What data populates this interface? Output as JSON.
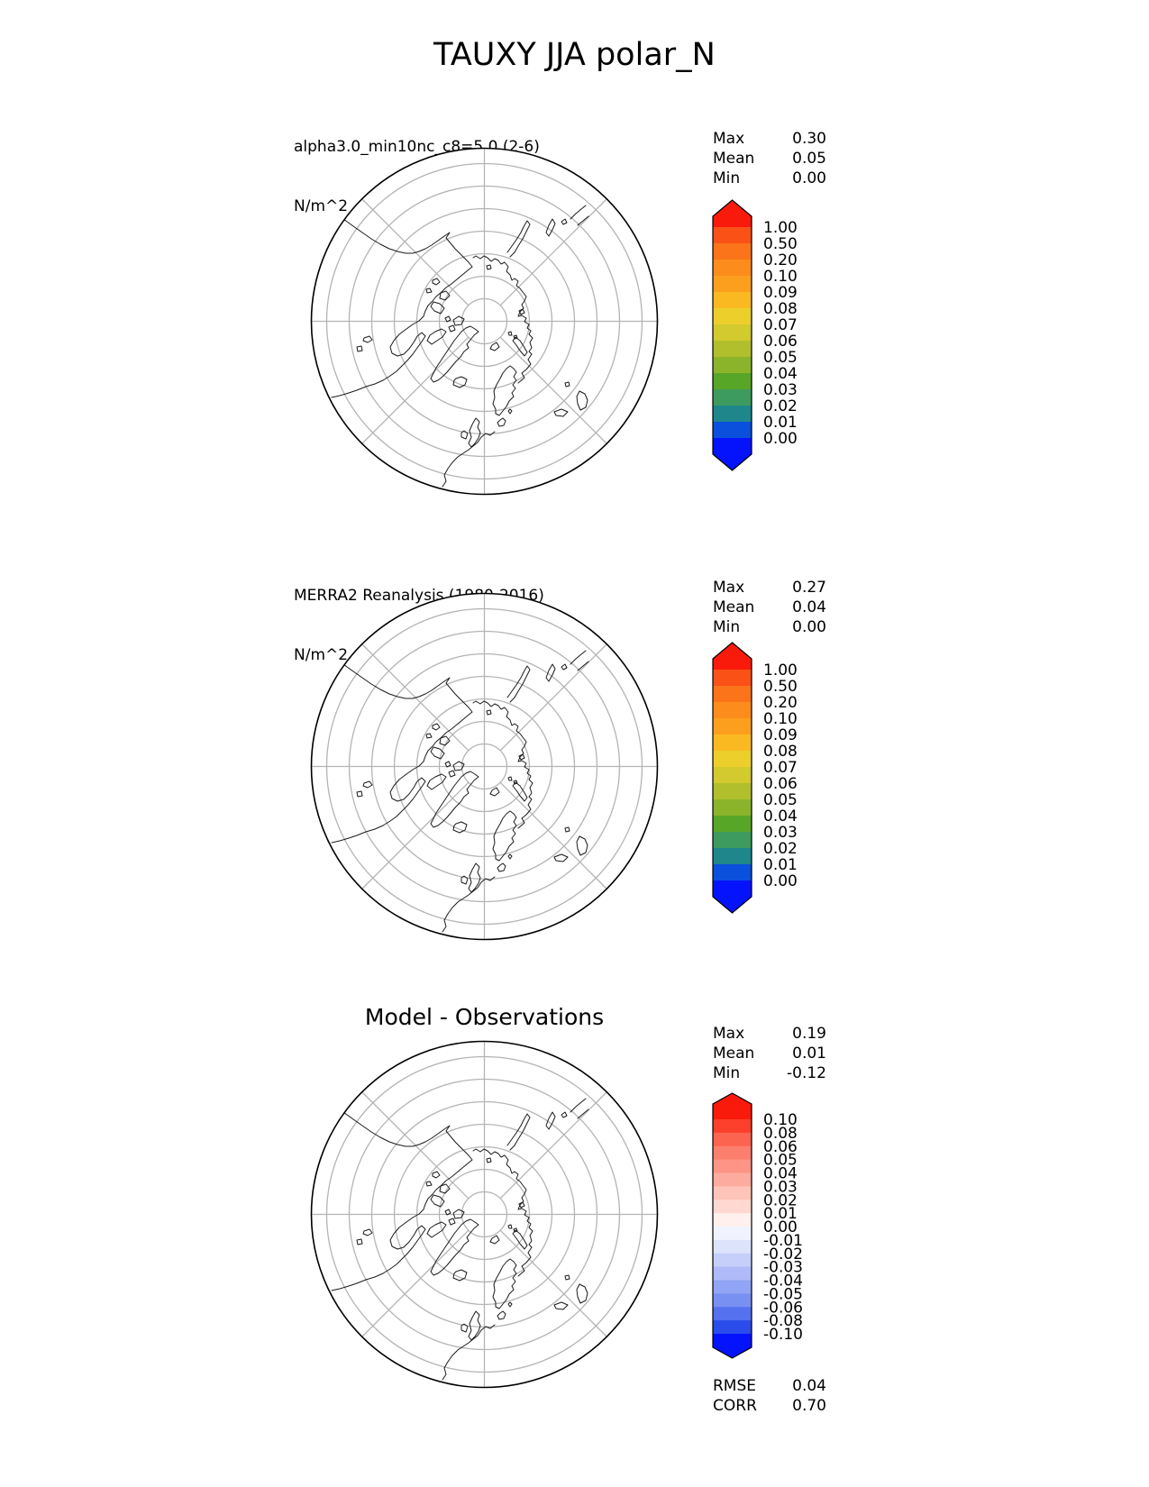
{
  "figure_title": "TAUXY JJA polar_N",
  "panels": [
    {
      "header_line1": "alpha3.0_min10nc_c8=5.0 (2-6)",
      "header_line2": "N/m^2",
      "stats_rows": [
        {
          "label": "Max",
          "value": "0.30"
        },
        {
          "label": "Mean",
          "value": "0.05"
        },
        {
          "label": "Min",
          "value": "0.00"
        }
      ]
    },
    {
      "header_line1": "MERRA2 Reanalysis (1980-2016)",
      "header_line2": "N/m^2",
      "stats_rows": [
        {
          "label": "Max",
          "value": "0.27"
        },
        {
          "label": "Mean",
          "value": "0.04"
        },
        {
          "label": "Min",
          "value": "0.00"
        }
      ]
    },
    {
      "header_line1": "Model - Observations",
      "header_line2": "",
      "stats_rows": [
        {
          "label": "Max",
          "value": "0.19"
        },
        {
          "label": "Mean",
          "value": "0.01"
        },
        {
          "label": "Min",
          "value": "-0.12"
        }
      ]
    }
  ],
  "footer_rows": [
    {
      "label": "RMSE",
      "value": "0.04"
    },
    {
      "label": "CORR",
      "value": "0.70"
    }
  ],
  "colorbars": [
    {
      "labels": [
        "1.00",
        "0.50",
        "0.20",
        "0.10",
        "0.09",
        "0.08",
        "0.07",
        "0.06",
        "0.05",
        "0.04",
        "0.03",
        "0.02",
        "0.01",
        "0.00"
      ],
      "segment_colors": [
        "#fa5117",
        "#fb7419",
        "#fc8c1b",
        "#fc9f1e",
        "#fbb921",
        "#eccf2b",
        "#d2ca2e",
        "#b1bf2d",
        "#8cb42b",
        "#58a627",
        "#3e9b5f",
        "#1e878c",
        "#0b50dd"
      ],
      "over_color": "#f91a0c",
      "under_color": "#0413fc"
    },
    {
      "labels": [
        "1.00",
        "0.50",
        "0.20",
        "0.10",
        "0.09",
        "0.08",
        "0.07",
        "0.06",
        "0.05",
        "0.04",
        "0.03",
        "0.02",
        "0.01",
        "0.00"
      ],
      "segment_colors": [
        "#fa5117",
        "#fb7419",
        "#fc8c1b",
        "#fc9f1e",
        "#fbb921",
        "#eccf2b",
        "#d2ca2e",
        "#b1bf2d",
        "#8cb42b",
        "#58a627",
        "#3e9b5f",
        "#1e878c",
        "#0b50dd"
      ],
      "over_color": "#f91a0c",
      "under_color": "#0413fc"
    },
    {
      "labels": [
        "0.10",
        "0.08",
        "0.06",
        "0.05",
        "0.04",
        "0.03",
        "0.02",
        "0.01",
        "0.00",
        "-0.01",
        "-0.02",
        "-0.03",
        "-0.04",
        "-0.05",
        "-0.06",
        "-0.08",
        "-0.10"
      ],
      "segment_colors": [
        "#fb3f2a",
        "#fc6450",
        "#fc7f6d",
        "#fd9485",
        "#fdab9e",
        "#fec3b9",
        "#fed8d1",
        "#fff0ed",
        "#f0f3fd",
        "#dde3fb",
        "#c5cffa",
        "#aebbf8",
        "#92a4f5",
        "#7990f3",
        "#5571ef",
        "#2a4cea"
      ],
      "over_color": "#f91a0c",
      "under_color": "#0413fc"
    }
  ],
  "map_style": {
    "graticule_color": "#b4b4b4",
    "coastline_color": "#1a1a1a",
    "outline_color": "#000000",
    "background": "#ffffff"
  },
  "chart_data": {
    "type": "map",
    "title": "TAUXY JJA polar_N",
    "variable": "TAUXY",
    "season": "JJA",
    "region": "polar_N",
    "projection": "north polar stereographic",
    "panels": [
      {
        "title": "alpha3.0_min10nc_c8=5.0 (2-6)",
        "units": "N/m^2",
        "max": 0.3,
        "mean": 0.05,
        "min": 0.0,
        "colorbar_levels": [
          0.0,
          0.01,
          0.02,
          0.03,
          0.04,
          0.05,
          0.06,
          0.07,
          0.08,
          0.09,
          0.1,
          0.2,
          0.5,
          1.0
        ],
        "colorbar_extend": "both"
      },
      {
        "title": "MERRA2 Reanalysis (1980-2016)",
        "units": "N/m^2",
        "max": 0.27,
        "mean": 0.04,
        "min": 0.0,
        "colorbar_levels": [
          0.0,
          0.01,
          0.02,
          0.03,
          0.04,
          0.05,
          0.06,
          0.07,
          0.08,
          0.09,
          0.1,
          0.2,
          0.5,
          1.0
        ],
        "colorbar_extend": "both"
      },
      {
        "title": "Model - Observations",
        "max": 0.19,
        "mean": 0.01,
        "min": -0.12,
        "rmse": 0.04,
        "corr": 0.7,
        "colorbar_levels": [
          -0.1,
          -0.08,
          -0.06,
          -0.05,
          -0.04,
          -0.03,
          -0.02,
          -0.01,
          0.0,
          0.01,
          0.02,
          0.03,
          0.04,
          0.05,
          0.06,
          0.08,
          0.1
        ],
        "colorbar_extend": "both"
      }
    ]
  }
}
